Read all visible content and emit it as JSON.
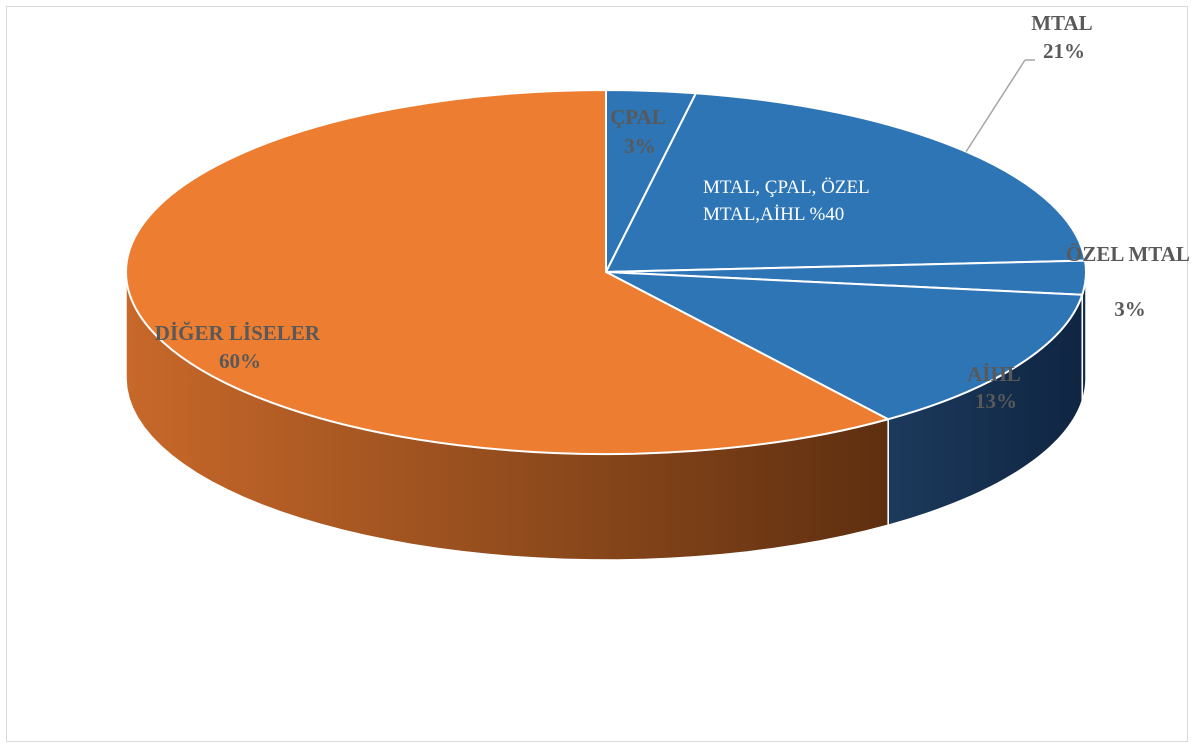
{
  "chart_data": {
    "type": "pie",
    "title": "",
    "style": "3d",
    "slices": [
      {
        "name": "ÇPAL",
        "value": 3,
        "percent_label": "3%",
        "color": "#2E75B6"
      },
      {
        "name": "MTAL",
        "value": 21,
        "percent_label": "21%",
        "color": "#2E75B6"
      },
      {
        "name": "ÖZEL MTAL",
        "value": 3,
        "percent_label": "3%",
        "color": "#2E75B6"
      },
      {
        "name": "AİHL",
        "value": 13,
        "percent_label": "13%",
        "color": "#2E75B6"
      },
      {
        "name": "DİĞER LİSELER",
        "value": 60,
        "percent_label": "60%",
        "color": "#ED7D31"
      }
    ],
    "annotation_lines": [
      "MTAL, ÇPAL, ÖZEL",
      "MTAL,AİHL %40"
    ],
    "colors": {
      "group": "#2E75B6",
      "other": "#ED7D31",
      "label_text": "#595959"
    }
  }
}
